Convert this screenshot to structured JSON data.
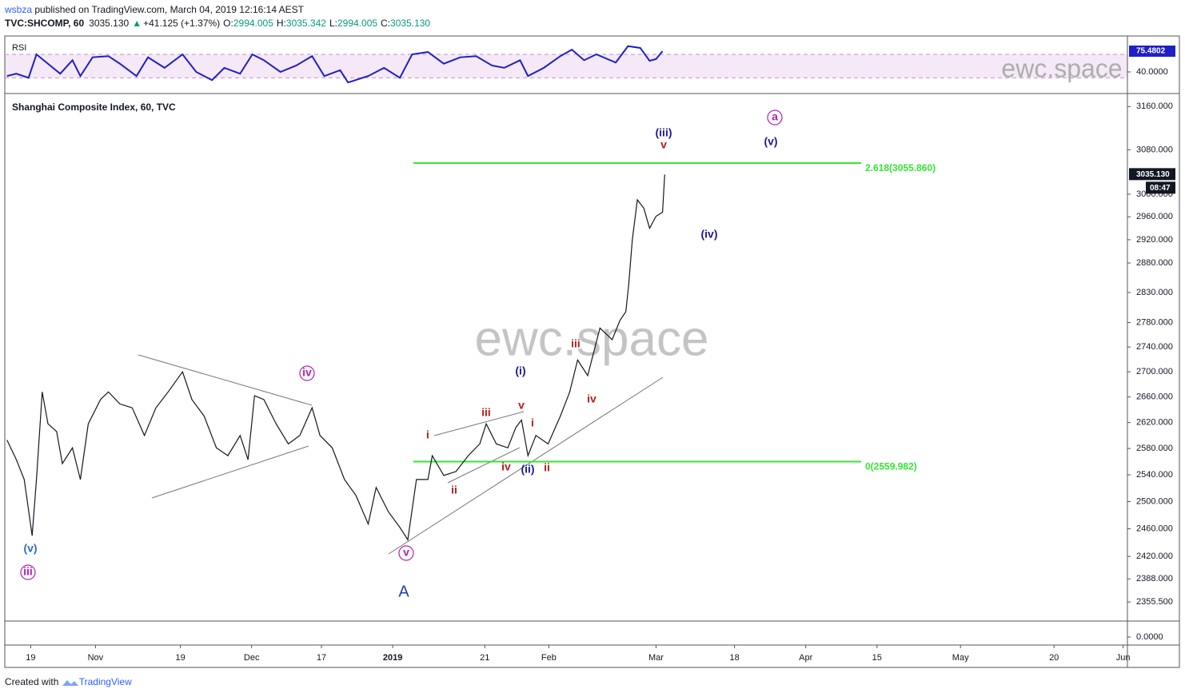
{
  "header": {
    "user": "wsbza",
    "published": " published on TradingView.com, March 04, 2019 12:16:14 AEST",
    "quote": [
      "TVC:SHCOMP, 60",
      "3035.130",
      "▲",
      "+41.125 (+1.37%)",
      "O:",
      "2994.005",
      "H:",
      "3035.342",
      "L:",
      "2994.005",
      "C:",
      "3035.130"
    ]
  },
  "footer": {
    "prefix": "Created with",
    "brand": "TradingView"
  },
  "chart_data": [
    {
      "type": "line",
      "title": "RSI",
      "watermark": "ewc.space",
      "color": "#1f1fc8",
      "ylim": [
        16.8,
        101.4
      ],
      "band": [
        30,
        70
      ],
      "yticks": [
        {
          "value": 40,
          "label": "40.0000"
        }
      ],
      "last": {
        "value": 75.4802,
        "label": "75.4802"
      },
      "x": [
        -3.3,
        -2,
        -0.3,
        0.8,
        2.4,
        4.1,
        5.8,
        6.9,
        8.6,
        10.8,
        12.4,
        14.7,
        16.3,
        18.6,
        21.1,
        23,
        25.2,
        26.9,
        29.1,
        30.8,
        32.4,
        34.7,
        36.9,
        39.1,
        40.8,
        43,
        44.1,
        46.9,
        49.1,
        51.3,
        53,
        55.2,
        57.4,
        59.7,
        61.9,
        64.1,
        65.8,
        68,
        69.1,
        71.3,
        73.6,
        75.2,
        76.9,
        78.6,
        81.3,
        83,
        84.7,
        86,
        86.9,
        87.8
      ],
      "values": [
        33,
        37,
        30,
        70,
        54,
        37,
        60,
        33,
        65,
        67,
        54,
        33,
        65,
        47,
        70,
        40,
        26,
        47,
        37,
        70,
        60,
        40,
        51,
        67,
        33,
        43,
        22,
        33,
        47,
        30,
        70,
        74,
        54,
        65,
        67,
        51,
        47,
        60,
        33,
        47,
        67,
        78,
        60,
        70,
        56,
        84,
        81,
        59,
        62,
        75.4802
      ]
    },
    {
      "type": "line",
      "title": "Shanghai Composite Index, 60, TVC",
      "watermark": "ewc.space",
      "color": "#131722",
      "log_scale": true,
      "ylim": [
        2329,
        3183
      ],
      "yticks": [
        {
          "value": 3160,
          "label": "3160.000"
        },
        {
          "value": 3080,
          "label": "3080.000"
        },
        {
          "value": 3000,
          "label": "3000.000"
        },
        {
          "value": 2960,
          "label": "2960.000"
        },
        {
          "value": 2920,
          "label": "2920.000"
        },
        {
          "value": 2880,
          "label": "2880.000"
        },
        {
          "value": 2830,
          "label": "2830.000"
        },
        {
          "value": 2780,
          "label": "2780.000"
        },
        {
          "value": 2740,
          "label": "2740.000"
        },
        {
          "value": 2700,
          "label": "2700.000"
        },
        {
          "value": 2660,
          "label": "2660.000"
        },
        {
          "value": 2620,
          "label": "2620.000"
        },
        {
          "value": 2580,
          "label": "2580.000"
        },
        {
          "value": 2540,
          "label": "2540.000"
        },
        {
          "value": 2500,
          "label": "2500.000"
        },
        {
          "value": 2460,
          "label": "2460.000"
        },
        {
          "value": 2420,
          "label": "2420.000"
        },
        {
          "value": 2388,
          "label": "2388.000"
        },
        {
          "value": 2355.5,
          "label": "2355.500"
        }
      ],
      "last": {
        "value": 3035.13,
        "label": "3035.130"
      },
      "countdown": "08:47",
      "xlim": [
        -3.6,
        152.4
      ],
      "xticks": [
        {
          "value": 0,
          "label": "19"
        },
        {
          "value": 9,
          "label": "Nov"
        },
        {
          "value": 20.8,
          "label": "19"
        },
        {
          "value": 30.7,
          "label": "Dec"
        },
        {
          "value": 40.4,
          "label": "17"
        },
        {
          "value": 50.3,
          "label": "2019"
        },
        {
          "value": 63.1,
          "label": "21"
        },
        {
          "value": 72,
          "label": "Feb"
        },
        {
          "value": 86.9,
          "label": "Mar"
        },
        {
          "value": 97.8,
          "label": "18"
        },
        {
          "value": 107.7,
          "label": "Apr"
        },
        {
          "value": 117.6,
          "label": "15"
        },
        {
          "value": 129.2,
          "label": "May"
        },
        {
          "value": 142.2,
          "label": "20"
        },
        {
          "value": 151.8,
          "label": "Jun"
        }
      ],
      "x": [
        -3.3,
        -2,
        -0.9,
        0.2,
        0.8,
        1.6,
        2.4,
        3.6,
        4.4,
        5.8,
        6.9,
        8,
        9.7,
        10.8,
        12.4,
        14.1,
        15.8,
        17.4,
        19.1,
        21.1,
        22.4,
        24.1,
        25.8,
        27.4,
        29.1,
        30.2,
        31.1,
        32.4,
        34.1,
        35.8,
        37.4,
        39.1,
        40.2,
        41.9,
        43.6,
        45.2,
        46.9,
        48,
        49.7,
        51.3,
        52.4,
        53.6,
        55.2,
        55.8,
        57.4,
        59.1,
        60.8,
        62.4,
        63.3,
        64.7,
        66.3,
        67.4,
        68.2,
        69.1,
        70.2,
        71.9,
        73.6,
        74.9,
        76,
        77.4,
        79.1,
        80.8,
        81.9,
        82.7,
        83.1,
        83.6,
        84.3,
        85.2,
        86,
        86.9,
        87.8,
        88.1
      ],
      "values": [
        2593,
        2563,
        2533,
        2450,
        2533,
        2668,
        2618,
        2606,
        2557,
        2581,
        2533,
        2618,
        2656,
        2668,
        2649,
        2643,
        2600,
        2643,
        2668,
        2700,
        2656,
        2630,
        2581,
        2569,
        2600,
        2563,
        2662,
        2656,
        2618,
        2587,
        2600,
        2643,
        2600,
        2581,
        2533,
        2509,
        2467,
        2521,
        2485,
        2462,
        2444,
        2533,
        2533,
        2569,
        2539,
        2545,
        2569,
        2587,
        2618,
        2587,
        2581,
        2612,
        2624,
        2569,
        2600,
        2587,
        2630,
        2668,
        2719,
        2694,
        2771,
        2752,
        2784,
        2798,
        2844,
        2920,
        2990,
        2975,
        2940,
        2961,
        2968,
        3035.13
      ],
      "levels": [
        {
          "value": 3055.86,
          "label": "2.618(3055.860)",
          "color": "#33e633"
        },
        {
          "value": 2559.982,
          "label": "0(2559.982)",
          "color": "#33e633"
        }
      ],
      "waves": [
        "(v)",
        "iii",
        "iv",
        "v",
        "A",
        "i",
        "ii",
        "iii",
        "iv",
        "v",
        "(ii)",
        "(i)",
        "i",
        "ii",
        "iii",
        "iv",
        "(iii)",
        "v",
        "(iv)",
        "(v)",
        "a"
      ]
    },
    {
      "type": "empty",
      "yticks": [
        {
          "value": 0,
          "label": "0.0000"
        }
      ]
    }
  ]
}
